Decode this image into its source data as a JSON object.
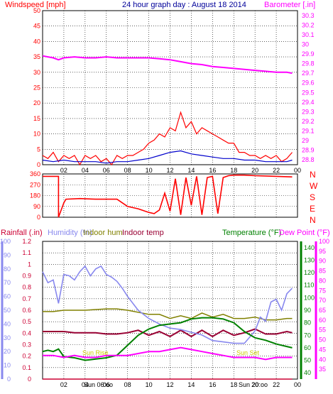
{
  "colors": {
    "frame": "#000000",
    "grid": "#000000",
    "wind": "#ff0000",
    "gust": "#ff0000",
    "avg_wind": "#0000cc",
    "barometer": "#ff00ff",
    "direction": "#ff0000",
    "rain": "#cc0033",
    "humidity": "#8888ee",
    "indoor_hum": "#808000",
    "indoor_temp": "#990033",
    "temperature": "#008000",
    "dew_point": "#ff00ff",
    "sun": "#ffff00",
    "title": "#000099"
  },
  "top": {
    "title": "24 hour graph day : August 18 2014",
    "left_label": "Windspeed [mph]",
    "right_label": "Barometer [.in]"
  },
  "bottom": {
    "left_label": "Rainfall (.in)",
    "humidity_label": "Humidity (%)",
    "indoor_hum_label": "Indoor hum",
    "indoor_temp_label": "Indoor temp",
    "temperature_label": "Temperature (°F)",
    "dew_label": "Dew Point (°F)",
    "sunrise": "Sun Rise",
    "sunset": "Sun Set",
    "sunrise_time": "Sun 06:oo",
    "sunset_time": "Sun 20:oo"
  },
  "direction_letters": [
    "N",
    "W",
    "S",
    "E",
    "N"
  ],
  "chart_data": [
    {
      "type": "line",
      "name": "wind-barometer",
      "x_ticks": [
        "02",
        "04",
        "06",
        "08",
        "10",
        "12",
        "14",
        "16",
        "18",
        "20",
        "22",
        "00"
      ],
      "x_range": [
        0,
        24
      ],
      "y_left_ticks": [
        "0",
        "5",
        "10",
        "15",
        "20",
        "25",
        "30",
        "35",
        "40",
        "45",
        "50"
      ],
      "y_left_range": [
        0,
        50
      ],
      "y_right_ticks": [
        "28.8",
        "28.9",
        "29",
        "29.1",
        "29.2",
        "29.3",
        "29.4",
        "29.5",
        "29.6",
        "29.7",
        "29.8",
        "29.9",
        "30",
        "30.1",
        "30.2",
        "30.3"
      ],
      "y_right_range": [
        28.75,
        30.35
      ],
      "barometer": {
        "x": [
          0,
          0.5,
          1,
          1.5,
          2,
          3,
          4,
          5,
          6,
          7,
          8,
          9,
          10,
          11,
          12,
          13,
          14,
          15,
          16,
          17,
          18,
          19,
          20,
          21,
          22,
          23,
          23.5
        ],
        "y": [
          29.88,
          29.87,
          29.86,
          29.84,
          29.86,
          29.87,
          29.86,
          29.86,
          29.87,
          29.86,
          29.86,
          29.86,
          29.86,
          29.85,
          29.84,
          29.82,
          29.8,
          29.79,
          29.77,
          29.76,
          29.75,
          29.74,
          29.73,
          29.72,
          29.71,
          29.71,
          29.7
        ]
      },
      "wind_gust": {
        "x": [
          0,
          0.5,
          1,
          1.5,
          2,
          2.5,
          3,
          3.5,
          4,
          4.5,
          5,
          5.5,
          6,
          6.5,
          7,
          7.5,
          8,
          8.5,
          9,
          9.5,
          10,
          10.5,
          11,
          11.5,
          12,
          12.5,
          13,
          13.5,
          14,
          14.5,
          15,
          15.5,
          16,
          16.5,
          17,
          17.5,
          18,
          18.5,
          19,
          19.5,
          20,
          20.5,
          21,
          21.5,
          22,
          22.5,
          23,
          23.5
        ],
        "y": [
          3,
          2,
          4,
          1,
          3,
          2,
          3,
          0,
          3,
          2,
          3,
          1,
          2,
          0,
          3,
          2,
          3,
          3,
          4,
          5,
          7,
          8,
          10,
          9,
          12,
          11,
          17,
          12,
          14,
          10,
          12,
          11,
          10,
          9,
          8,
          7,
          7,
          4,
          4,
          3,
          3,
          2,
          3,
          2,
          3,
          1,
          2,
          4
        ]
      },
      "wind_avg": {
        "x": [
          0,
          1,
          2,
          3,
          4,
          5,
          6,
          7,
          8,
          9,
          10,
          11,
          12,
          13,
          14,
          15,
          16,
          17,
          18,
          19,
          20,
          21,
          22,
          23,
          23.5
        ],
        "y": [
          1.5,
          1,
          1.5,
          1,
          1,
          1,
          0.5,
          1,
          1,
          1.5,
          2,
          3,
          4,
          4.5,
          3.5,
          3,
          2.5,
          2,
          2,
          1.5,
          1.5,
          1,
          1,
          1,
          1.5
        ]
      }
    },
    {
      "type": "line",
      "name": "wind-direction",
      "y_ticks": [
        "0",
        "90",
        "180",
        "270",
        "360"
      ],
      "y_range": [
        0,
        360
      ],
      "x": [
        0,
        1.5,
        1.5,
        2,
        2.2,
        3.5,
        5,
        7,
        7.5,
        8,
        9,
        10,
        10.5,
        11,
        11.5,
        12,
        12.5,
        13,
        13.5,
        14,
        14.5,
        15,
        15.5,
        16,
        16.5,
        17,
        17.5,
        18,
        19,
        20,
        22,
        23.5
      ],
      "y": [
        340,
        340,
        0,
        120,
        150,
        155,
        150,
        150,
        120,
        90,
        70,
        40,
        30,
        60,
        200,
        50,
        320,
        20,
        330,
        100,
        340,
        20,
        330,
        340,
        30,
        330,
        345,
        350,
        350,
        345,
        340,
        335
      ]
    },
    {
      "type": "line",
      "name": "temperature-humidity",
      "x_ticks": [
        "02",
        "04",
        "06",
        "08",
        "10",
        "12",
        "14",
        "16",
        "18",
        "20",
        "22",
        "00"
      ],
      "x_range": [
        0,
        24
      ],
      "rain_ticks": [
        "0",
        "0.1",
        "0.2",
        "0.3",
        "0.4",
        "0.5",
        "0.6",
        "0.7",
        "0.8",
        "0.9",
        "1",
        "1.1",
        "1.2"
      ],
      "rain_range": [
        0,
        1.2
      ],
      "hum_ticks": [
        "0",
        "10",
        "20",
        "30",
        "40",
        "50",
        "60",
        "70",
        "80",
        "90",
        "100"
      ],
      "hum_range": [
        0,
        100
      ],
      "temp_ticks": [
        "40",
        "50",
        "60",
        "70",
        "80",
        "90",
        "100",
        "110",
        "120",
        "130",
        "140"
      ],
      "temp_range": [
        35,
        145
      ],
      "dew_ticks": [
        "35",
        "40",
        "45",
        "50",
        "55",
        "60",
        "65",
        "70",
        "75",
        "80",
        "85",
        "90",
        "95",
        "100"
      ],
      "dew_range": [
        30,
        100
      ],
      "rainfall": {
        "x": [
          0,
          23.5
        ],
        "y": [
          0,
          0
        ]
      },
      "humidity": {
        "x": [
          0,
          0.5,
          1,
          1.5,
          2,
          2.5,
          3,
          3.5,
          4,
          4.5,
          5,
          5.5,
          6,
          6.5,
          7,
          7.5,
          8,
          9,
          10,
          11,
          12,
          13,
          14,
          15,
          16,
          17,
          18,
          19,
          20,
          20.5,
          21,
          21.5,
          22,
          22.5,
          23,
          23.5
        ],
        "y": [
          78,
          70,
          72,
          55,
          76,
          75,
          72,
          78,
          82,
          75,
          80,
          82,
          76,
          74,
          71,
          66,
          60,
          50,
          44,
          40,
          37,
          36,
          34,
          32,
          28,
          27,
          26,
          26,
          35,
          45,
          42,
          56,
          58,
          50,
          62,
          66
        ]
      },
      "indoor_hum": {
        "x": [
          0,
          1,
          2,
          4,
          6,
          7,
          8,
          10,
          11,
          12,
          13,
          14,
          15,
          16,
          17,
          18,
          19,
          20,
          21,
          22,
          23,
          23.5
        ],
        "y": [
          49,
          49,
          50,
          50,
          51,
          51,
          50,
          47,
          47,
          44,
          46,
          44,
          48,
          45,
          47,
          44,
          44,
          45,
          43,
          43,
          44,
          44
        ]
      },
      "indoor_temp": {
        "x": [
          0,
          1,
          2,
          3,
          4,
          5,
          6,
          7,
          8,
          9,
          10,
          11,
          12,
          13,
          14,
          15,
          16,
          17,
          18,
          19,
          20,
          21,
          22,
          23,
          23.5
        ],
        "y": [
          73,
          73,
          73,
          72,
          72,
          72,
          71,
          71,
          72,
          74,
          70,
          73,
          69,
          74,
          69,
          74,
          69,
          74,
          70,
          72,
          75,
          71,
          71,
          73,
          72
        ]
      },
      "temperature": {
        "x": [
          0,
          0.5,
          1,
          1.5,
          2,
          3,
          4,
          5,
          6,
          7,
          8,
          9,
          10,
          11,
          12,
          13,
          14,
          15,
          16,
          17,
          18,
          19,
          20,
          21,
          22,
          23,
          23.5
        ],
        "y": [
          57,
          58,
          57,
          59,
          53,
          52,
          50,
          51,
          52,
          54,
          62,
          70,
          75,
          78,
          79,
          80,
          83,
          84,
          84,
          83,
          80,
          73,
          68,
          66,
          63,
          61,
          60
        ]
      },
      "dew_point": {
        "x": [
          0,
          1,
          2,
          3,
          4,
          5,
          6,
          7,
          8,
          9,
          10,
          11,
          12,
          13,
          14,
          15,
          16,
          17,
          18,
          19,
          20,
          21,
          22,
          23,
          23.5
        ],
        "y": [
          42,
          42,
          41,
          42,
          41,
          41,
          42,
          42,
          42,
          43,
          44,
          44,
          45,
          46,
          45,
          44,
          43,
          42,
          41,
          41,
          41,
          40,
          41,
          41,
          41
        ]
      }
    }
  ]
}
